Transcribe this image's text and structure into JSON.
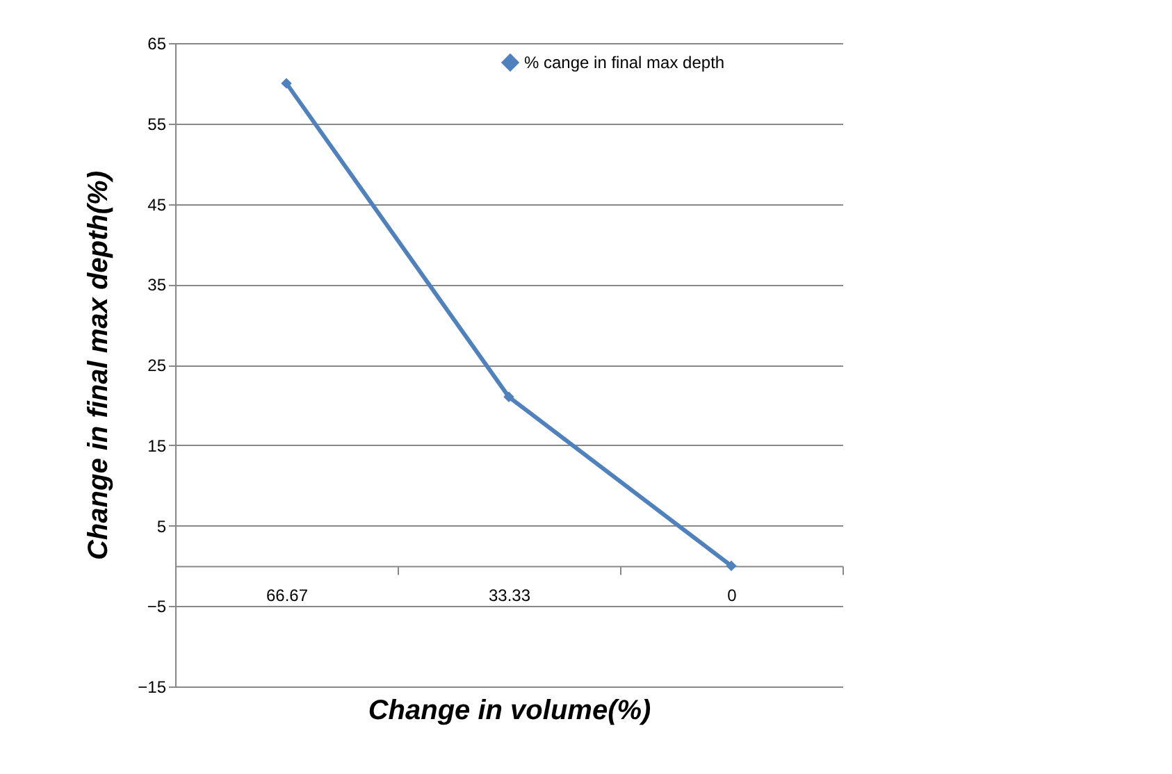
{
  "chart_data": {
    "type": "line",
    "xlabel": "Change in volume(%)",
    "ylabel": "Change in final max depth(%)",
    "categories": [
      "66.67",
      "33.33",
      "0"
    ],
    "series": [
      {
        "name": "% cange in final max depth",
        "color": "#4f81bd",
        "values": [
          60,
          21,
          0
        ]
      }
    ],
    "ylim": [
      -15,
      65
    ],
    "yticks": [
      -15,
      -5,
      5,
      15,
      25,
      35,
      45,
      55,
      65
    ],
    "grid": "y",
    "legend": "top right",
    "marker": "diamond",
    "line_style": "solid"
  }
}
